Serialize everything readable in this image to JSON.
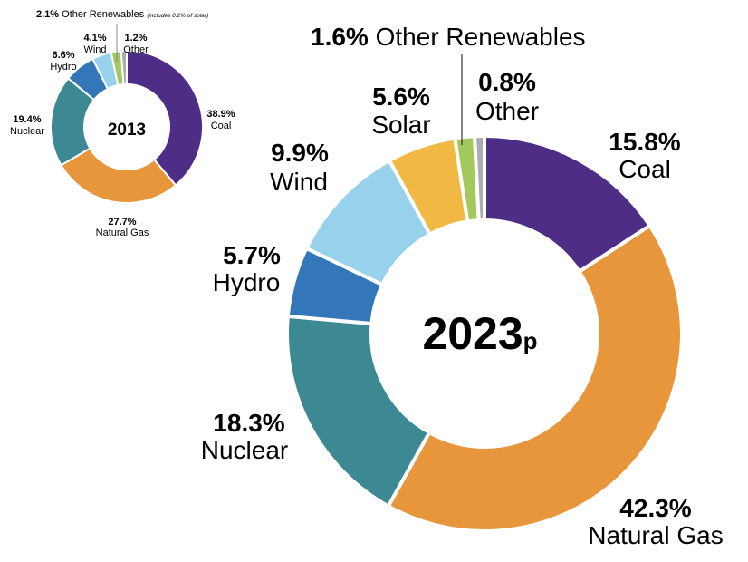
{
  "chart_data": [
    {
      "type": "pie",
      "variant": "donut",
      "title": "2013",
      "center_label": "2013",
      "start_angle_deg": 0,
      "direction": "clockwise",
      "segments": [
        {
          "name": "Coal",
          "value": 38.9,
          "pct_label": "38.9%",
          "color": "#4e2d87"
        },
        {
          "name": "Natural Gas",
          "value": 27.7,
          "pct_label": "27.7%",
          "color": "#e8963c"
        },
        {
          "name": "Nuclear",
          "value": 19.4,
          "pct_label": "19.4%",
          "color": "#3d8993"
        },
        {
          "name": "Hydro",
          "value": 6.6,
          "pct_label": "6.6%",
          "color": "#3377b8"
        },
        {
          "name": "Wind",
          "value": 4.1,
          "pct_label": "4.1%",
          "color": "#97d1ec"
        },
        {
          "name": "Other Renewables",
          "value": 2.1,
          "pct_label": "2.1%",
          "note": "(includes 0.2% of solar)",
          "color": "#a1c95c"
        },
        {
          "name": "Other",
          "value": 1.2,
          "pct_label": "1.2%",
          "color": "#a9adb0"
        }
      ]
    },
    {
      "type": "pie",
      "variant": "donut",
      "title": "2023p",
      "center_label": "2023",
      "center_suffix": "p",
      "start_angle_deg": 0,
      "direction": "clockwise",
      "segments": [
        {
          "name": "Coal",
          "value": 15.8,
          "pct_label": "15.8%",
          "color": "#4e2d87"
        },
        {
          "name": "Natural Gas",
          "value": 42.3,
          "pct_label": "42.3%",
          "color": "#e8963c"
        },
        {
          "name": "Nuclear",
          "value": 18.3,
          "pct_label": "18.3%",
          "color": "#3d8993"
        },
        {
          "name": "Hydro",
          "value": 5.7,
          "pct_label": "5.7%",
          "color": "#3377b8"
        },
        {
          "name": "Wind",
          "value": 9.9,
          "pct_label": "9.9%",
          "color": "#97d1ec"
        },
        {
          "name": "Solar",
          "value": 5.6,
          "pct_label": "5.6%",
          "color": "#f2b844"
        },
        {
          "name": "Other Renewables",
          "value": 1.6,
          "pct_label": "1.6%",
          "color": "#a1c95c"
        },
        {
          "name": "Other",
          "value": 0.8,
          "pct_label": "0.8%",
          "color": "#a9adb0"
        }
      ]
    }
  ]
}
